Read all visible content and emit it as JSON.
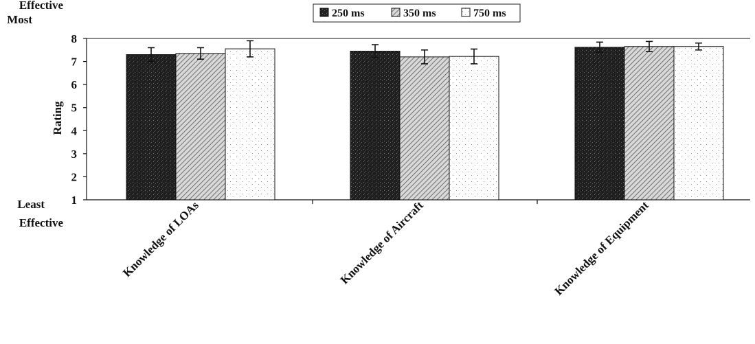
{
  "chart_data": {
    "type": "bar",
    "categories": [
      "Knowledge of LOAs",
      "Knowledge of Aircraft",
      "Knowledge of Equipment"
    ],
    "series": [
      {
        "name": "250 ms",
        "values": [
          7.3,
          7.45,
          7.62
        ],
        "errors": [
          0.3,
          0.28,
          0.22
        ],
        "pattern": "dark-speckle"
      },
      {
        "name": "350 ms",
        "values": [
          7.35,
          7.2,
          7.65
        ],
        "errors": [
          0.25,
          0.3,
          0.22
        ],
        "pattern": "hatched"
      },
      {
        "name": "750 ms",
        "values": [
          7.55,
          7.22,
          7.65
        ],
        "errors": [
          0.35,
          0.32,
          0.15
        ],
        "pattern": "light-dots"
      }
    ],
    "ylabel": "Rating",
    "ylim": [
      1,
      8
    ],
    "yticks": [
      1,
      2,
      3,
      4,
      5,
      6,
      7,
      8
    ],
    "ytick_top_label": [
      "Most",
      "Effective"
    ],
    "ytick_bottom_label": [
      "Least",
      "Effective"
    ],
    "legend_position": "top-center",
    "grid": false
  }
}
